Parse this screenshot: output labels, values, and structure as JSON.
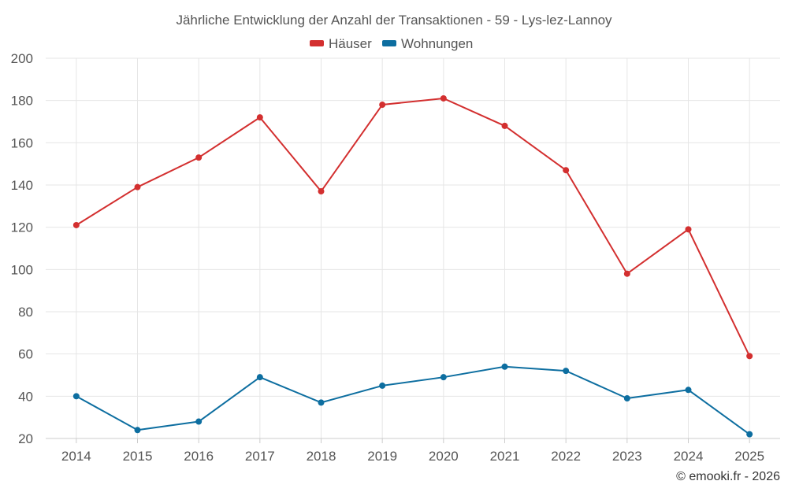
{
  "chart_data": {
    "type": "line",
    "title": "Jährliche Entwicklung der Anzahl der Transaktionen - 59 - Lys-lez-Lannoy",
    "categories": [
      "2014",
      "2015",
      "2016",
      "2017",
      "2018",
      "2019",
      "2020",
      "2021",
      "2022",
      "2023",
      "2024",
      "2025"
    ],
    "ylim": [
      20,
      200
    ],
    "yticks": [
      20,
      40,
      60,
      80,
      100,
      120,
      140,
      160,
      180,
      200
    ],
    "grid": true,
    "legend_position": "top-center",
    "series": [
      {
        "name": "Häuser",
        "color": "#d32f2f",
        "values": [
          121,
          139,
          153,
          172,
          137,
          178,
          181,
          168,
          147,
          98,
          119,
          59
        ]
      },
      {
        "name": "Wohnungen",
        "color": "#0d6ea0",
        "values": [
          40,
          24,
          28,
          49,
          37,
          45,
          49,
          54,
          52,
          39,
          43,
          22
        ]
      }
    ],
    "credit": "© emooki.fr - 2026"
  }
}
